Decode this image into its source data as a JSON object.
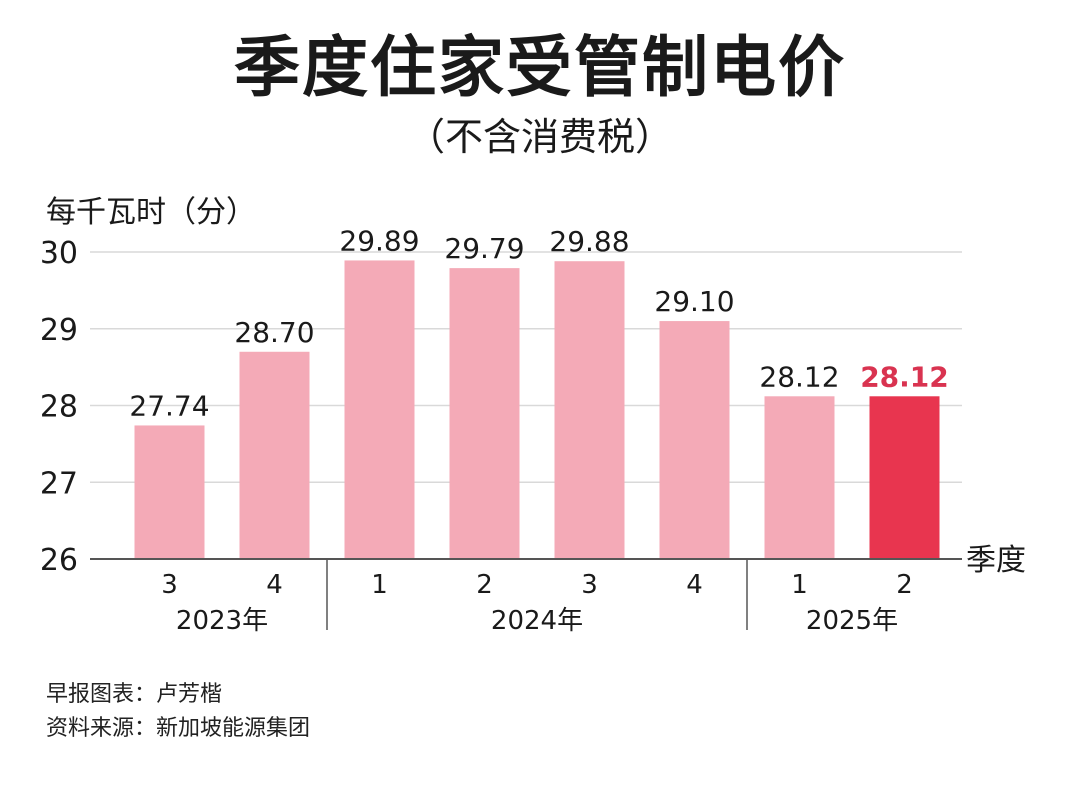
{
  "chart_data": {
    "type": "bar",
    "title": "季度住家受管制电价",
    "subtitle": "（不含消费税）",
    "ylabel": "每千瓦时（分）",
    "xlabel": "季度",
    "ylim": [
      26,
      30
    ],
    "yticks": [
      "26",
      "27",
      "28",
      "29",
      "30"
    ],
    "categories": [
      "3",
      "4",
      "1",
      "2",
      "3",
      "4",
      "1",
      "2"
    ],
    "groups": [
      {
        "label": "2023年",
        "start": 0,
        "end": 1
      },
      {
        "label": "2024年",
        "start": 2,
        "end": 5
      },
      {
        "label": "2025年",
        "start": 6,
        "end": 7
      }
    ],
    "values": [
      27.74,
      28.7,
      29.89,
      29.79,
      29.88,
      29.1,
      28.12,
      28.12
    ],
    "value_labels": [
      "27.74",
      "28.70",
      "29.89",
      "29.79",
      "29.88",
      "29.10",
      "28.12",
      "28.12"
    ],
    "highlight_index": 7,
    "grid": true,
    "colors": {
      "bar": "#f4aab7",
      "highlight": "#e8354f",
      "highlight_label": "#d93350",
      "grid": "#d9d9d9",
      "axis": "#555555"
    }
  },
  "footer": {
    "credit": "早报图表：卢芳楷",
    "source": "资料来源：新加坡能源集团"
  }
}
